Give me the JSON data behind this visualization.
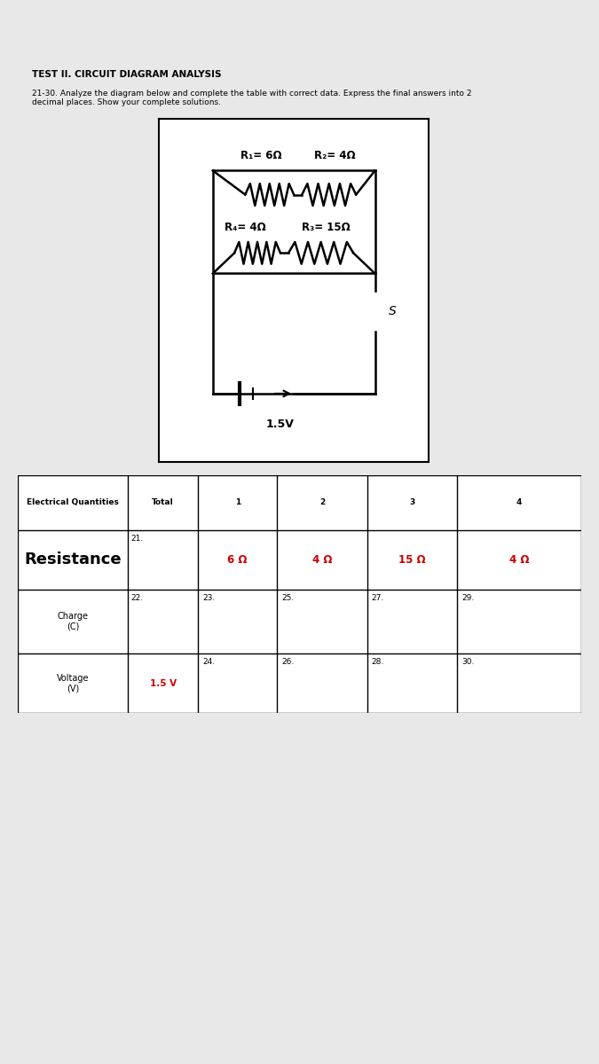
{
  "bg_color": "#e8e8e8",
  "panel_color": "#ffffff",
  "title": "TEST II. CIRCUIT DIAGRAM ANALYSIS",
  "subtitle": "21-30. Analyze the diagram below and complete the table with correct data. Express the final answers into 2\ndecimal places. Show your complete solutions.",
  "circuit_voltage": "1.5V",
  "r1_label": "R₁= 6Ω",
  "r2_label": "R₂= 4Ω",
  "r3_label": "R₃= 15Ω",
  "r4_label": "R₄= 4Ω",
  "table_header": [
    "Electrical Quantities",
    "Total",
    "1",
    "2",
    "3",
    "4"
  ],
  "row1_label": "Resistance",
  "row1_num": "21.",
  "row1_values": [
    "6 Ω",
    "4 Ω",
    "15 Ω",
    "4 Ω"
  ],
  "row1_colors": [
    "#cc0000",
    "#cc0000",
    "#cc0000",
    "#cc0000"
  ],
  "row2_label": "Charge\n(C)",
  "row2_num": "22.",
  "row2_nums": [
    "23.",
    "25.",
    "27.",
    "29."
  ],
  "row3_label": "Voltage\n(V)",
  "row3_total": "1.5 V",
  "row3_nums": [
    "24.",
    "26.",
    "28.",
    "30."
  ]
}
